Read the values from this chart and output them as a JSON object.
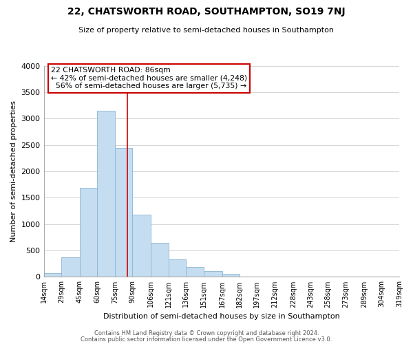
{
  "title": "22, CHATSWORTH ROAD, SOUTHAMPTON, SO19 7NJ",
  "subtitle": "Size of property relative to semi-detached houses in Southampton",
  "xlabel": "Distribution of semi-detached houses by size in Southampton",
  "ylabel": "Number of semi-detached properties",
  "bar_color": "#c5ddf0",
  "bar_edge_color": "#8ab4d4",
  "background_color": "#ffffff",
  "grid_color": "#d0d0d0",
  "annotation_box_color": "#ffffff",
  "annotation_border_color": "#cc0000",
  "property_line_color": "#cc0000",
  "footer1": "Contains HM Land Registry data © Crown copyright and database right 2024.",
  "footer2": "Contains public sector information licensed under the Open Government Licence v3.0.",
  "annotation_title": "22 CHATSWORTH ROAD: 86sqm",
  "annotation_line1": "← 42% of semi-detached houses are smaller (4,248)",
  "annotation_line2": "  56% of semi-detached houses are larger (5,735) →",
  "property_size": 86,
  "bin_edges": [
    14,
    29,
    45,
    60,
    75,
    90,
    106,
    121,
    136,
    151,
    167,
    182,
    197,
    212,
    228,
    243,
    258,
    273,
    289,
    304,
    319
  ],
  "bin_labels": [
    "14sqm",
    "29sqm",
    "45sqm",
    "60sqm",
    "75sqm",
    "90sqm",
    "106sqm",
    "121sqm",
    "136sqm",
    "151sqm",
    "167sqm",
    "182sqm",
    "197sqm",
    "212sqm",
    "228sqm",
    "243sqm",
    "258sqm",
    "273sqm",
    "289sqm",
    "304sqm",
    "319sqm"
  ],
  "counts": [
    70,
    370,
    1690,
    3150,
    2440,
    1180,
    640,
    330,
    185,
    115,
    60,
    10,
    0,
    0,
    0,
    0,
    0,
    0,
    0,
    0
  ],
  "ylim": [
    0,
    4000
  ],
  "yticks": [
    0,
    500,
    1000,
    1500,
    2000,
    2500,
    3000,
    3500,
    4000
  ]
}
